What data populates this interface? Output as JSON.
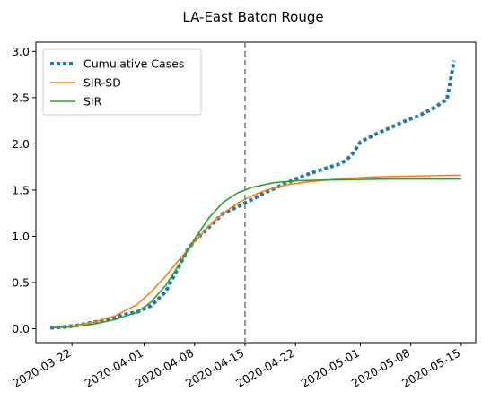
{
  "chart_data": {
    "type": "line",
    "title": "LA-East Baton Rouge",
    "xlabel": "",
    "ylabel": "",
    "x_range": [
      "2020-03-17",
      "2020-05-17"
    ],
    "ylim": [
      -0.15,
      3.1
    ],
    "x_ticks": [
      "2020-03-22",
      "2020-04-01",
      "2020-04-08",
      "2020-04-15",
      "2020-04-22",
      "2020-05-01",
      "2020-05-08",
      "2020-05-15"
    ],
    "y_ticks": [
      "0.0",
      "0.5",
      "1.0",
      "1.5",
      "2.0",
      "2.5",
      "3.0"
    ],
    "grid": false,
    "legend_position": "top-left",
    "vline": {
      "x": "2020-04-15",
      "style": "dashed",
      "color": "#7f7f7f"
    },
    "series": [
      {
        "name": "Cumulative Cases",
        "style": "dotted",
        "color": "#1f77b4",
        "points": [
          [
            "2020-03-19",
            0.01
          ],
          [
            "2020-03-21",
            0.02
          ],
          [
            "2020-03-23",
            0.04
          ],
          [
            "2020-03-25",
            0.07
          ],
          [
            "2020-03-27",
            0.1
          ],
          [
            "2020-03-29",
            0.15
          ],
          [
            "2020-03-31",
            0.18
          ],
          [
            "2020-04-02",
            0.25
          ],
          [
            "2020-04-04",
            0.4
          ],
          [
            "2020-04-05",
            0.55
          ],
          [
            "2020-04-06",
            0.7
          ],
          [
            "2020-04-07",
            0.85
          ],
          [
            "2020-04-08",
            0.95
          ],
          [
            "2020-04-10",
            1.1
          ],
          [
            "2020-04-12",
            1.25
          ],
          [
            "2020-04-14",
            1.32
          ],
          [
            "2020-04-16",
            1.4
          ],
          [
            "2020-04-18",
            1.48
          ],
          [
            "2020-04-20",
            1.55
          ],
          [
            "2020-04-22",
            1.62
          ],
          [
            "2020-04-24",
            1.68
          ],
          [
            "2020-04-26",
            1.73
          ],
          [
            "2020-04-28",
            1.78
          ],
          [
            "2020-04-29",
            1.82
          ],
          [
            "2020-04-30",
            1.9
          ],
          [
            "2020-05-01",
            2.02
          ],
          [
            "2020-05-03",
            2.1
          ],
          [
            "2020-05-05",
            2.17
          ],
          [
            "2020-05-07",
            2.24
          ],
          [
            "2020-05-09",
            2.3
          ],
          [
            "2020-05-11",
            2.38
          ],
          [
            "2020-05-13",
            2.48
          ],
          [
            "2020-05-14",
            2.9
          ]
        ]
      },
      {
        "name": "SIR-SD",
        "style": "solid",
        "color": "#ff7f0e",
        "points": [
          [
            "2020-03-19",
            0.01
          ],
          [
            "2020-03-22",
            0.03
          ],
          [
            "2020-03-25",
            0.07
          ],
          [
            "2020-03-28",
            0.14
          ],
          [
            "2020-03-31",
            0.26
          ],
          [
            "2020-04-02",
            0.4
          ],
          [
            "2020-04-04",
            0.57
          ],
          [
            "2020-04-06",
            0.76
          ],
          [
            "2020-04-08",
            0.94
          ],
          [
            "2020-04-10",
            1.11
          ],
          [
            "2020-04-12",
            1.25
          ],
          [
            "2020-04-14",
            1.36
          ],
          [
            "2020-04-16",
            1.44
          ],
          [
            "2020-04-18",
            1.5
          ],
          [
            "2020-04-21",
            1.56
          ],
          [
            "2020-04-24",
            1.59
          ],
          [
            "2020-04-28",
            1.62
          ],
          [
            "2020-05-02",
            1.64
          ],
          [
            "2020-05-07",
            1.65
          ],
          [
            "2020-05-15",
            1.66
          ]
        ]
      },
      {
        "name": "SIR",
        "style": "solid",
        "color": "#2ca02c",
        "points": [
          [
            "2020-03-19",
            0.01
          ],
          [
            "2020-03-22",
            0.02
          ],
          [
            "2020-03-25",
            0.05
          ],
          [
            "2020-03-28",
            0.1
          ],
          [
            "2020-03-31",
            0.18
          ],
          [
            "2020-04-02",
            0.29
          ],
          [
            "2020-04-04",
            0.47
          ],
          [
            "2020-04-06",
            0.71
          ],
          [
            "2020-04-08",
            0.97
          ],
          [
            "2020-04-10",
            1.2
          ],
          [
            "2020-04-12",
            1.37
          ],
          [
            "2020-04-14",
            1.47
          ],
          [
            "2020-04-16",
            1.53
          ],
          [
            "2020-04-19",
            1.58
          ],
          [
            "2020-04-22",
            1.6
          ],
          [
            "2020-04-27",
            1.61
          ],
          [
            "2020-05-05",
            1.62
          ],
          [
            "2020-05-15",
            1.62
          ]
        ]
      }
    ]
  }
}
